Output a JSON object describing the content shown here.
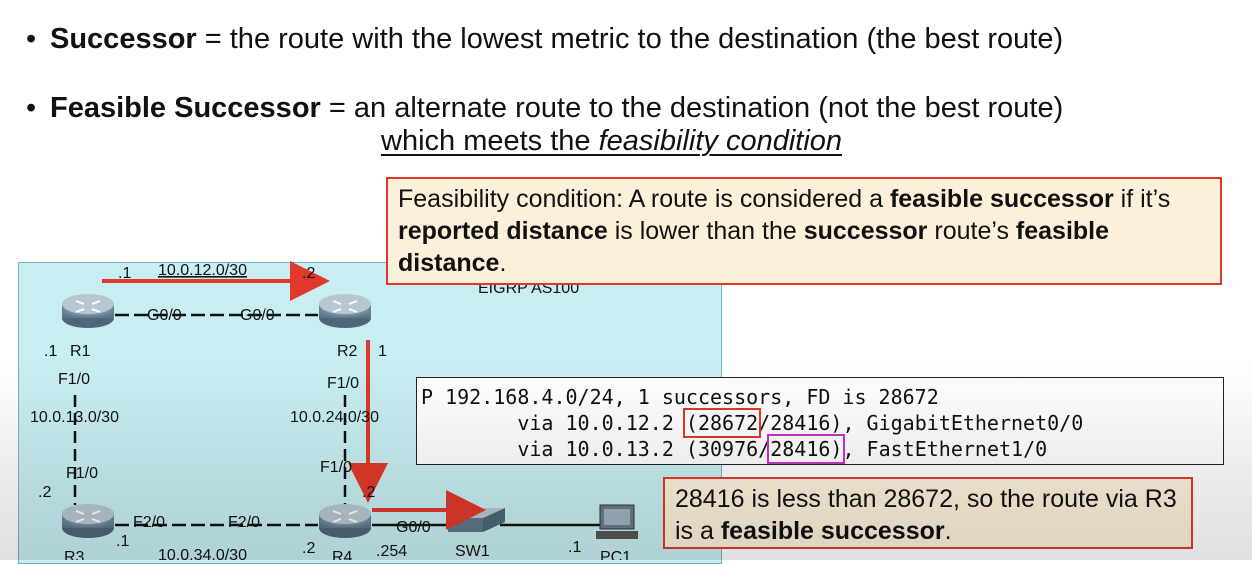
{
  "bullets": {
    "successor_term": "Successor",
    "successor_def": " = the route with the lowest metric to the destination (the best route)",
    "fs_term": "Feasible Successor",
    "fs_def": " = an alternate route to the destination (not the best route)",
    "fs_sub_prefix": "which meets the ",
    "fs_sub_italic": "feasibility condition"
  },
  "feasibility_note": {
    "p1": "Feasibility condition: A route is considered a ",
    "b1": "feasible successor",
    "p2": " if it’s ",
    "b2": "reported distance",
    "p3": " is lower than the ",
    "b3": "successor",
    "p4": " route’s ",
    "b4": "feasible distance",
    "p5": "."
  },
  "cli": {
    "line1": "P 192.168.4.0/24, 1 successors, FD is 28672",
    "line2_prefix": "        via 10.0.12.2 ",
    "line2_fd": "(28672",
    "line2_rest": "/28416), GigabitEthernet0/0",
    "line3_prefix": "        via 10.0.13.2 (30976/",
    "line3_rd": "28416)",
    "line3_rest": ", FastEthernet1/0"
  },
  "result_note": {
    "p1": "28416 is less than 28672, so the route via R3 is a ",
    "b1": "feasible successor",
    "p2": "."
  },
  "topology": {
    "eigrp_label": "EIGRP AS100",
    "net_12": "10.0.12.0/30",
    "net_13": "10.0.13.0/30",
    "net_24": "10.0.24.0/30",
    "net_34": "10.0.34.0/30",
    "r1_dot1_top": ".1",
    "r2_dot2_top": ".2",
    "r1_g": "G0/0",
    "r2_g": "G0/0",
    "r1_name": "R1",
    "r2_name": "R2",
    "r1_dot1": ".1",
    "r2_dot1": "1",
    "r1_f10": "F1/0",
    "r2_f10": "F1/0",
    "r3_f10": "F1/0",
    "r4_f10": "F1/0",
    "r3_dot2": ".2",
    "r4_dot2": ".2",
    "r3_f20": "F2/0",
    "r4_f20": "F2/0",
    "r3_dot1": ".1",
    "r4_dot2b": ".2",
    "r3_name": "R3",
    "r4_name": "R4",
    "r4_g00": "G0/0",
    "r4_254": ".254",
    "sw1": "SW1",
    "pc_dot1": ".1",
    "pc1": "PC1"
  },
  "colors": {
    "arrow": "#e0392b",
    "highlight_red": "#e0392b",
    "highlight_magenta": "#cc33cc",
    "topology_bg": "#c8eef2",
    "note_bg": "#fbf0da"
  }
}
